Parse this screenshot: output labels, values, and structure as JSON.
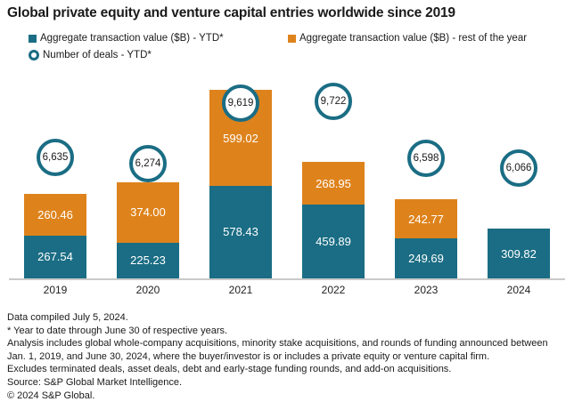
{
  "title": "Global private equity and venture capital entries worldwide since 2019",
  "colors": {
    "ytd_bar": "#1a6d84",
    "rest_bar": "#de831c",
    "deal_ring": "#1a6d84",
    "axis_line": "#c9c9c9"
  },
  "legend": {
    "items": [
      {
        "label": "Aggregate transaction value ($B) - YTD*",
        "marker": "square",
        "color": "#1a6d84"
      },
      {
        "label": "Aggregate transaction value ($B) - rest of the year",
        "marker": "square",
        "color": "#de831c"
      },
      {
        "label": "Number of deals - YTD*",
        "marker": "ring",
        "color": "#1a6d84"
      }
    ]
  },
  "chart_data": {
    "type": "bar",
    "stacked": true,
    "categories": [
      "2019",
      "2020",
      "2021",
      "2022",
      "2023",
      "2024"
    ],
    "series": [
      {
        "name": "Aggregate transaction value ($B) - YTD*",
        "color": "#1a6d84",
        "values": [
          267.54,
          225.23,
          578.43,
          459.89,
          249.69,
          309.82
        ],
        "labels": [
          "267.54",
          "225.23",
          "578.43",
          "459.89",
          "249.69",
          "309.82"
        ]
      },
      {
        "name": "Aggregate transaction value ($B) - rest of the year",
        "color": "#de831c",
        "values": [
          260.46,
          374.0,
          599.02,
          268.95,
          242.77,
          null
        ],
        "labels": [
          "260.46",
          "374.00",
          "599.02",
          "268.95",
          "242.77",
          null
        ]
      }
    ],
    "markers": {
      "name": "Number of deals - YTD*",
      "values": [
        6635,
        6274,
        9619,
        9722,
        6598,
        6066
      ],
      "labels": [
        "6,635",
        "6,274",
        "9,619",
        "9,722",
        "6,598",
        "6,066"
      ]
    },
    "value_axis_visible": false,
    "legend_position": "top"
  },
  "footnotes": [
    "Data compiled July 5, 2024.",
    "* Year to date through June 30 of respective years.",
    "Analysis includes global whole-company acquisitions, minority stake acquisitions, and rounds of funding announced between Jan. 1, 2019, and June 30, 2024, where the buyer/investor is or includes a private equity or venture capital firm.",
    "Excludes terminated deals, asset deals, debt and early-stage funding rounds, and add-on acquisitions.",
    "Source: S&P Global Market Intelligence.",
    "© 2024 S&P Global."
  ]
}
